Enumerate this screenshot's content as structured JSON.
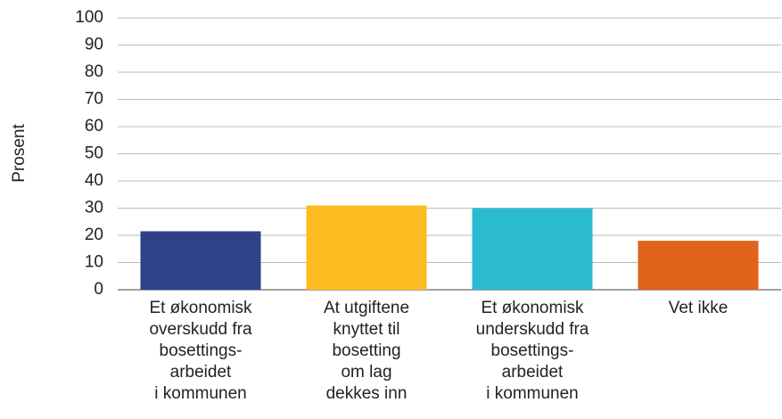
{
  "chart_data": {
    "type": "bar",
    "ylabel": "Prosent",
    "categories": [
      "Et økonomisk\noverskudd fra\nbosettings-\narbeidet\ni kommunen",
      "At utgiftene\nknyttet til\nbosetting\nom lag\ndekkes inn",
      "Et økonomisk\nunderskudd fra\nbosettings-\narbeidet\ni kommunen",
      "Vet ikke"
    ],
    "values": [
      21.5,
      31,
      30,
      18
    ],
    "colors": [
      "#2e4189",
      "#fbbb21",
      "#2bbbd0",
      "#e1621a"
    ],
    "ylim": [
      0,
      100
    ],
    "yticks": [
      0,
      10,
      20,
      30,
      40,
      50,
      60,
      70,
      80,
      90,
      100
    ],
    "grid": true
  }
}
